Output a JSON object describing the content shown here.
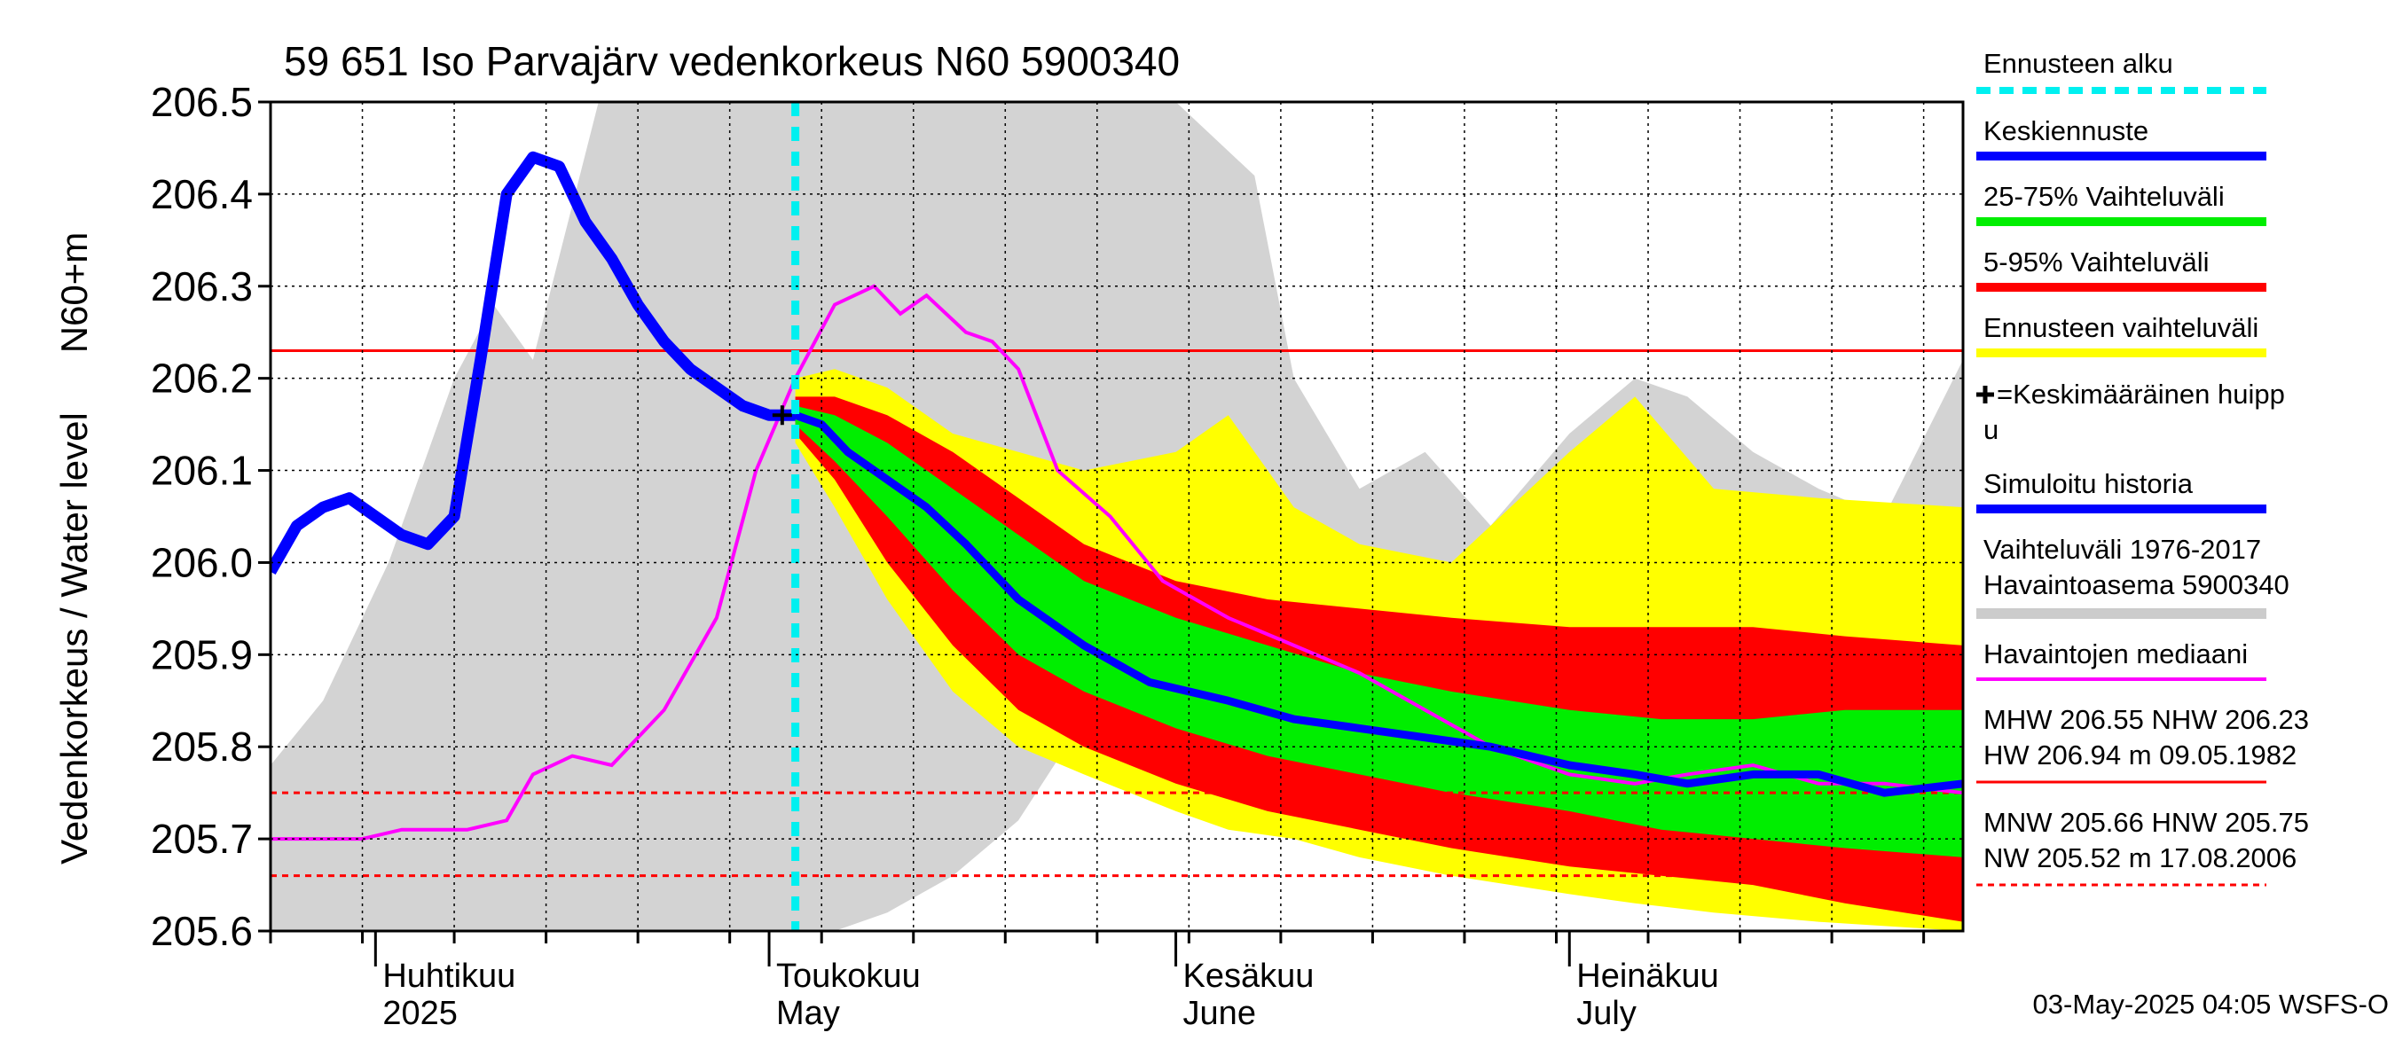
{
  "chart_data": {
    "type": "area",
    "title": "59 651 Iso Parvajärv vedenkorkeus N60 5900340",
    "ylabel_top": "N60+m",
    "ylabel_main": "Vedenkorkeus / Water level",
    "ylim": [
      205.6,
      206.5
    ],
    "y_ticks": [
      "205.6",
      "205.7",
      "205.8",
      "205.9",
      "206.0",
      "206.1",
      "206.2",
      "206.3",
      "206.4",
      "206.5"
    ],
    "x_range": [
      "2025-03-24",
      "2025-07-31"
    ],
    "month_labels": [
      {
        "fi": "Huhtikuu",
        "en": "2025",
        "date": "2025-04-01"
      },
      {
        "fi": "Toukokuu",
        "en": "May",
        "date": "2025-05-01"
      },
      {
        "fi": "Kesäkuu",
        "en": "June",
        "date": "2025-06-01"
      },
      {
        "fi": "Heinäkuu",
        "en": "July",
        "date": "2025-07-01"
      }
    ],
    "forecast_start": "2025-05-03",
    "reference_lines": {
      "NHW": 206.23,
      "HNW": 205.75,
      "MNW": 205.66
    },
    "mean_peak": {
      "date": "2025-05-02",
      "value": 206.16
    },
    "simulated_history": {
      "x": [
        "2025-03-24",
        "2025-03-26",
        "2025-03-28",
        "2025-03-30",
        "2025-04-01",
        "2025-04-03",
        "2025-04-05",
        "2025-04-07",
        "2025-04-09",
        "2025-04-11",
        "2025-04-13",
        "2025-04-15",
        "2025-04-17",
        "2025-04-19",
        "2025-04-21",
        "2025-04-23",
        "2025-04-25",
        "2025-04-27",
        "2025-04-29",
        "2025-05-01",
        "2025-05-03"
      ],
      "y": [
        205.99,
        206.04,
        206.06,
        206.07,
        206.05,
        206.03,
        206.02,
        206.05,
        206.22,
        206.4,
        206.44,
        206.43,
        206.37,
        206.33,
        206.28,
        206.24,
        206.21,
        206.19,
        206.17,
        206.16,
        206.16
      ]
    },
    "mean_forecast": {
      "x": [
        "2025-05-03",
        "2025-05-05",
        "2025-05-07",
        "2025-05-10",
        "2025-05-13",
        "2025-05-16",
        "2025-05-20",
        "2025-05-25",
        "2025-05-30",
        "2025-06-05",
        "2025-06-10",
        "2025-06-15",
        "2025-06-20",
        "2025-06-25",
        "2025-07-01",
        "2025-07-06",
        "2025-07-10",
        "2025-07-15",
        "2025-07-20",
        "2025-07-25",
        "2025-07-31"
      ],
      "y": [
        206.16,
        206.15,
        206.12,
        206.09,
        206.06,
        206.02,
        205.96,
        205.91,
        205.87,
        205.85,
        205.83,
        205.82,
        205.81,
        205.8,
        205.78,
        205.77,
        205.76,
        205.77,
        205.77,
        205.75,
        205.76
      ]
    },
    "band_25_75": {
      "x": [
        "2025-05-03",
        "2025-05-06",
        "2025-05-10",
        "2025-05-15",
        "2025-05-20",
        "2025-05-25",
        "2025-06-01",
        "2025-06-08",
        "2025-06-15",
        "2025-06-22",
        "2025-07-01",
        "2025-07-08",
        "2025-07-15",
        "2025-07-22",
        "2025-07-31"
      ],
      "low": [
        206.15,
        206.11,
        206.05,
        205.97,
        205.9,
        205.86,
        205.82,
        205.79,
        205.77,
        205.75,
        205.73,
        205.71,
        205.7,
        205.69,
        205.68
      ],
      "high": [
        206.17,
        206.16,
        206.13,
        206.08,
        206.03,
        205.98,
        205.94,
        205.91,
        205.88,
        205.86,
        205.84,
        205.83,
        205.83,
        205.84,
        205.84
      ]
    },
    "band_5_95": {
      "x": [
        "2025-05-03",
        "2025-05-06",
        "2025-05-10",
        "2025-05-15",
        "2025-05-20",
        "2025-05-25",
        "2025-06-01",
        "2025-06-08",
        "2025-06-15",
        "2025-06-22",
        "2025-07-01",
        "2025-07-08",
        "2025-07-15",
        "2025-07-22",
        "2025-07-31"
      ],
      "low": [
        206.14,
        206.09,
        206.0,
        205.91,
        205.84,
        205.8,
        205.76,
        205.73,
        205.71,
        205.69,
        205.67,
        205.66,
        205.65,
        205.63,
        205.61
      ],
      "high": [
        206.18,
        206.18,
        206.16,
        206.12,
        206.07,
        206.02,
        205.98,
        205.96,
        205.95,
        205.94,
        205.93,
        205.93,
        205.93,
        205.92,
        205.91
      ]
    },
    "band_forecast_range": {
      "x": [
        "2025-05-03",
        "2025-05-06",
        "2025-05-10",
        "2025-05-15",
        "2025-05-20",
        "2025-05-25",
        "2025-06-01",
        "2025-06-05",
        "2025-06-10",
        "2025-06-15",
        "2025-06-22",
        "2025-07-01",
        "2025-07-06",
        "2025-07-12",
        "2025-07-20",
        "2025-07-31"
      ],
      "low": [
        206.13,
        206.06,
        205.96,
        205.86,
        205.8,
        205.77,
        205.73,
        205.71,
        205.7,
        205.68,
        205.66,
        205.64,
        205.63,
        205.62,
        205.61,
        205.6
      ],
      "high": [
        206.2,
        206.21,
        206.19,
        206.14,
        206.12,
        206.1,
        206.12,
        206.16,
        206.06,
        206.02,
        206.0,
        206.12,
        206.18,
        206.08,
        206.07,
        206.06
      ]
    },
    "historical_range_1976_2017": {
      "x": [
        "2025-03-24",
        "2025-03-28",
        "2025-04-02",
        "2025-04-07",
        "2025-04-10",
        "2025-04-13",
        "2025-04-18",
        "2025-04-22",
        "2025-04-26",
        "2025-05-01",
        "2025-05-06",
        "2025-05-10",
        "2025-05-15",
        "2025-05-20",
        "2025-05-25",
        "2025-06-01",
        "2025-06-07",
        "2025-06-10",
        "2025-06-15",
        "2025-06-20",
        "2025-06-25",
        "2025-07-01",
        "2025-07-06",
        "2025-07-10",
        "2025-07-15",
        "2025-07-20",
        "2025-07-25",
        "2025-07-31"
      ],
      "low": [
        205.6,
        205.6,
        205.6,
        205.6,
        205.6,
        205.6,
        205.6,
        205.6,
        205.6,
        205.6,
        205.6,
        205.62,
        205.66,
        205.72,
        205.83,
        205.82,
        205.78,
        205.76,
        205.74,
        205.72,
        205.71,
        205.69,
        205.67,
        205.64,
        205.62,
        205.61,
        205.61,
        205.6
      ],
      "high": [
        205.78,
        205.85,
        206.0,
        206.2,
        206.28,
        206.22,
        206.5,
        206.5,
        206.5,
        206.5,
        206.5,
        206.5,
        206.5,
        206.5,
        206.5,
        206.5,
        206.42,
        206.2,
        206.08,
        206.12,
        206.04,
        206.14,
        206.2,
        206.18,
        206.12,
        206.08,
        206.05,
        206.22
      ]
    },
    "observed_median": {
      "x": [
        "2025-03-24",
        "2025-03-31",
        "2025-04-03",
        "2025-04-08",
        "2025-04-11",
        "2025-04-13",
        "2025-04-16",
        "2025-04-19",
        "2025-04-23",
        "2025-04-27",
        "2025-04-30",
        "2025-05-03",
        "2025-05-06",
        "2025-05-09",
        "2025-05-11",
        "2025-05-13",
        "2025-05-16",
        "2025-05-18",
        "2025-05-20",
        "2025-05-23",
        "2025-05-27",
        "2025-05-31",
        "2025-06-05",
        "2025-06-10",
        "2025-06-15",
        "2025-06-20",
        "2025-06-25",
        "2025-07-01",
        "2025-07-06",
        "2025-07-10",
        "2025-07-15",
        "2025-07-20",
        "2025-07-25",
        "2025-07-31"
      ],
      "y": [
        205.7,
        205.7,
        205.71,
        205.71,
        205.72,
        205.77,
        205.79,
        205.78,
        205.84,
        205.94,
        206.1,
        206.2,
        206.28,
        206.3,
        206.27,
        206.29,
        206.25,
        206.24,
        206.21,
        206.1,
        206.05,
        205.98,
        205.94,
        205.91,
        205.88,
        205.84,
        205.8,
        205.77,
        205.76,
        205.77,
        205.78,
        205.76,
        205.76,
        205.75
      ]
    },
    "legend": [
      {
        "label": "Ennusteen alku",
        "color": "#00f0f0",
        "style": "dashed"
      },
      {
        "label": "Keskiennuste",
        "color": "#0000ff",
        "style": "solid"
      },
      {
        "label": "25-75% Vaihteluväli",
        "color": "#00ee00",
        "style": "solid"
      },
      {
        "label": "5-95% Vaihteluväli",
        "color": "#ff0000",
        "style": "solid"
      },
      {
        "label": "Ennusteen vaihteluväli",
        "color": "#ffff00",
        "style": "solid"
      },
      {
        "label": "=Keskimääräinen huipp",
        "label2": "u",
        "color": "#000000",
        "style": "cross"
      },
      {
        "label": "Simuloitu historia",
        "color": "#0000ff",
        "style": "solid"
      },
      {
        "label": "Vaihteluväli 1976-2017",
        "label2": " Havaintoasema 5900340",
        "color": "#cccccc",
        "style": "solid"
      },
      {
        "label": "Havaintojen mediaani",
        "color": "#ff00ff",
        "style": "solid"
      }
    ],
    "stats": {
      "line1": "MHW 206.55 NHW 206.23",
      "line2": "HW 206.94 m 09.05.1982",
      "line3": "MNW 205.66 HNW 205.75",
      "line4": "NW 205.52 m 17.08.2006"
    },
    "footer": "03-May-2025 04:05 WSFS-O",
    "colors": {
      "history_range": "#d3d3d3",
      "forecast_range": "#ffff00",
      "band_5_95": "#ff0000",
      "band_25_75": "#00ee00",
      "mean": "#0000ff",
      "median": "#ff00ff",
      "forecast_start": "#00f0f0",
      "ref_line": "#ff0000"
    }
  }
}
